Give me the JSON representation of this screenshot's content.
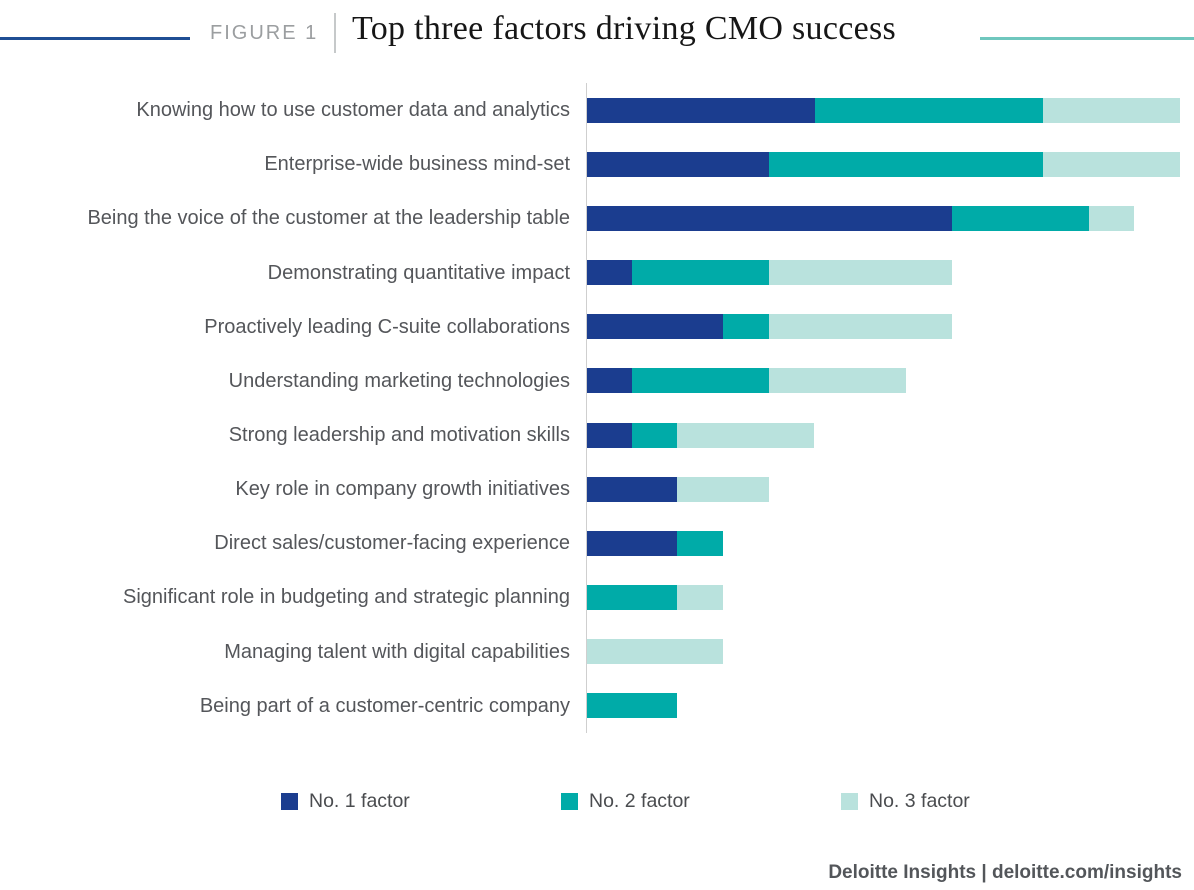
{
  "header": {
    "figure_label": "FIGURE 1",
    "title": "Top three factors driving CMO success"
  },
  "footer": {
    "text": "Deloitte Insights | deloitte.com/insights"
  },
  "colors": {
    "no1_factor": "#1b3d8f",
    "no2_factor": "#00aba8",
    "no3_factor": "#b9e2dd",
    "header_line_left": "#1f4e94",
    "header_line_right": "#6fc7be",
    "axis": "#cfcfcf",
    "label_text": "#54565a"
  },
  "chart_data": {
    "type": "bar",
    "orientation": "horizontal",
    "stacked": true,
    "title": "Top three factors driving CMO success",
    "xlabel": "",
    "ylabel": "",
    "xlim": [
      0,
      13
    ],
    "grid": false,
    "axis_value_labels_shown": false,
    "values_are_estimates_from_bar_lengths": true,
    "legend_position": "bottom",
    "categories": [
      "Knowing how to use customer data and analytics",
      "Enterprise-wide business mind-set",
      "Being the voice of the customer at the leadership table",
      "Demonstrating quantitative impact",
      "Proactively leading C-suite collaborations",
      "Understanding marketing technologies",
      "Strong leadership and motivation skills",
      "Key role in company growth initiatives",
      "Direct sales/customer-facing experience",
      "Significant role in budgeting and strategic planning",
      "Managing talent with digital capabilities",
      "Being part of a customer-centric company"
    ],
    "series": [
      {
        "name": "No. 1 factor",
        "color": "#1b3d8f",
        "values": [
          5,
          4,
          8,
          1,
          3,
          1,
          1,
          2,
          2,
          0,
          0,
          0
        ]
      },
      {
        "name": "No. 2 factor",
        "color": "#00aba8",
        "values": [
          5,
          6,
          3,
          3,
          1,
          3,
          1,
          0,
          1,
          2,
          0,
          2
        ]
      },
      {
        "name": "No. 3 factor",
        "color": "#b9e2dd",
        "values": [
          3,
          3,
          1,
          4,
          4,
          3,
          3,
          2,
          0,
          1,
          3,
          0
        ]
      }
    ]
  }
}
